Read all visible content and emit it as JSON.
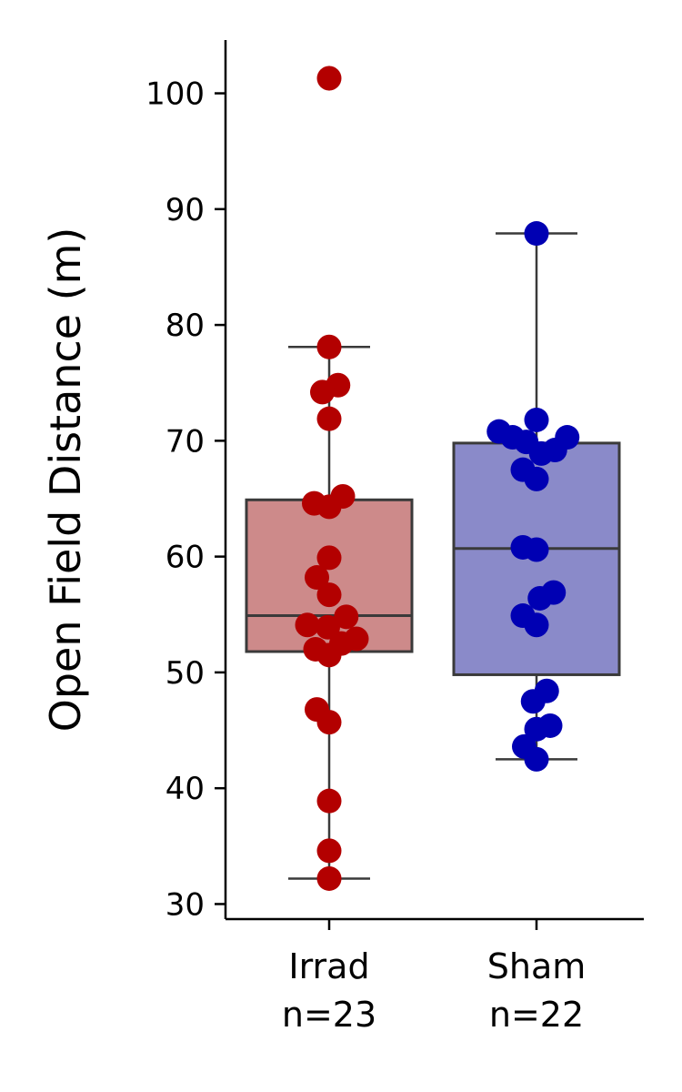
{
  "chart_data": {
    "type": "box",
    "title": "",
    "xlabel": "",
    "ylabel": "Open Field Distance (m)",
    "ylim": [
      28.7,
      104.6
    ],
    "yticks": [
      30,
      40,
      50,
      60,
      70,
      80,
      90,
      100
    ],
    "grid": false,
    "groups": [
      {
        "label": "Irrad",
        "n_label": "n=23",
        "box_color": "#cd8a8a",
        "point_color": "#b30000",
        "whisker_low": 32.2,
        "q1": 51.8,
        "median": 54.9,
        "q3": 64.9,
        "whisker_high": 78.1,
        "outliers": [
          101.3
        ],
        "points": [
          {
            "y": 101.3,
            "dx": 0
          },
          {
            "y": 78.1,
            "dx": 0
          },
          {
            "y": 74.8,
            "dx": 0.13
          },
          {
            "y": 74.2,
            "dx": -0.1
          },
          {
            "y": 71.9,
            "dx": 0
          },
          {
            "y": 65.2,
            "dx": 0.2
          },
          {
            "y": 64.6,
            "dx": -0.22
          },
          {
            "y": 64.3,
            "dx": 0
          },
          {
            "y": 59.9,
            "dx": 0
          },
          {
            "y": 58.2,
            "dx": -0.18
          },
          {
            "y": 56.7,
            "dx": 0
          },
          {
            "y": 54.8,
            "dx": 0.25
          },
          {
            "y": 54.1,
            "dx": -0.32
          },
          {
            "y": 53.9,
            "dx": -0.02
          },
          {
            "y": 52.9,
            "dx": 0.4
          },
          {
            "y": 52.5,
            "dx": 0.18
          },
          {
            "y": 52.0,
            "dx": -0.2
          },
          {
            "y": 51.5,
            "dx": 0
          },
          {
            "y": 46.8,
            "dx": -0.18
          },
          {
            "y": 45.7,
            "dx": 0
          },
          {
            "y": 38.9,
            "dx": 0
          },
          {
            "y": 34.6,
            "dx": 0
          },
          {
            "y": 32.2,
            "dx": 0
          }
        ]
      },
      {
        "label": "Sham",
        "n_label": "n=22",
        "box_color": "#8a8ac9",
        "point_color": "#0000b3",
        "whisker_low": 42.5,
        "q1": 49.8,
        "median": 60.7,
        "q3": 69.8,
        "whisker_high": 87.9,
        "outliers": [],
        "points": [
          {
            "y": 87.9,
            "dx": 0
          },
          {
            "y": 71.8,
            "dx": 0
          },
          {
            "y": 70.8,
            "dx": -0.55
          },
          {
            "y": 70.3,
            "dx": -0.35
          },
          {
            "y": 70.3,
            "dx": 0.45
          },
          {
            "y": 69.9,
            "dx": -0.15
          },
          {
            "y": 69.2,
            "dx": 0.27
          },
          {
            "y": 68.9,
            "dx": 0.07
          },
          {
            "y": 67.5,
            "dx": -0.2
          },
          {
            "y": 66.7,
            "dx": 0
          },
          {
            "y": 60.8,
            "dx": -0.2
          },
          {
            "y": 60.6,
            "dx": 0
          },
          {
            "y": 56.9,
            "dx": 0.25
          },
          {
            "y": 56.4,
            "dx": 0.05
          },
          {
            "y": 54.9,
            "dx": -0.2
          },
          {
            "y": 54.1,
            "dx": 0
          },
          {
            "y": 48.4,
            "dx": 0.15
          },
          {
            "y": 47.5,
            "dx": -0.05
          },
          {
            "y": 45.4,
            "dx": 0.2
          },
          {
            "y": 45.1,
            "dx": 0
          },
          {
            "y": 43.6,
            "dx": -0.18
          },
          {
            "y": 42.5,
            "dx": 0
          }
        ]
      }
    ]
  }
}
